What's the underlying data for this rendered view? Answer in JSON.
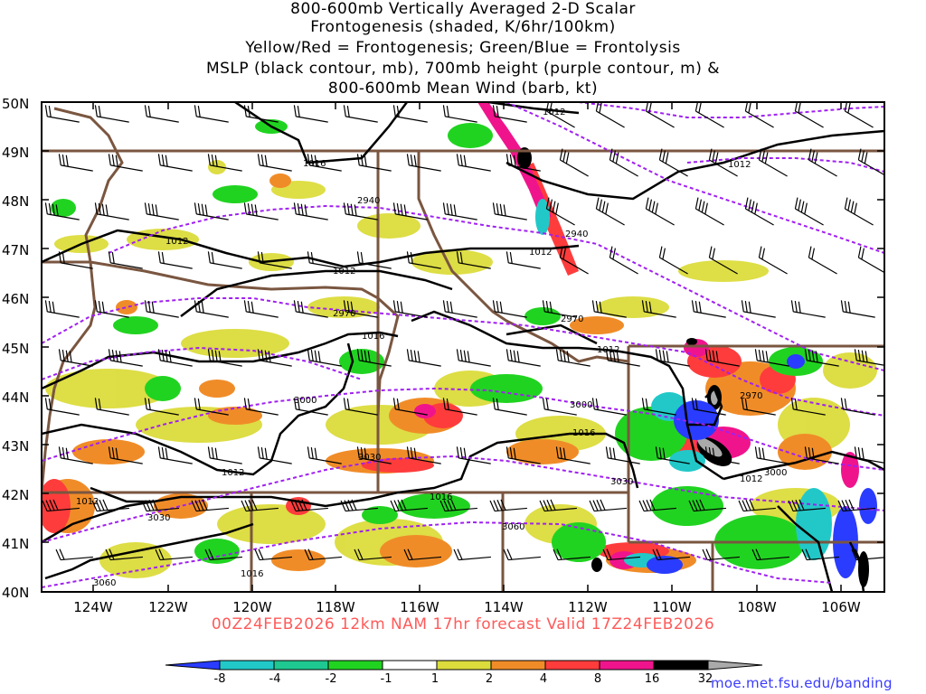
{
  "title": {
    "line1": "800-600mb Vertically Averaged 2-D Scalar",
    "line2": "Frontogenesis (shaded, K/6hr/100km)",
    "line3": "Yellow/Red = Frontogenesis;  Green/Blue = Frontolysis",
    "line4": "MSLP (black contour, mb), 700mb height (purple contour, m) &",
    "line5": "800-600mb Mean Wind (barb, kt)"
  },
  "valid": "00Z24FEB2026 12km NAM 17hr forecast Valid 17Z24FEB2026",
  "credit": "moe.met.fsu.edu/banding",
  "lat_labels": [
    "50N",
    "49N",
    "48N",
    "47N",
    "46N",
    "45N",
    "44N",
    "43N",
    "42N",
    "41N",
    "40N"
  ],
  "lon_labels": [
    "124W",
    "122W",
    "120W",
    "118W",
    "116W",
    "114W",
    "112W",
    "110W",
    "108W",
    "106W"
  ],
  "mslp_labels": [
    "1012",
    "1016",
    "1012",
    "1012",
    "1012",
    "1012",
    "1016",
    "1012",
    "1016",
    "1012",
    "1012",
    "1016",
    "1012",
    "1016"
  ],
  "height_labels": [
    "2940",
    "2940",
    "2970",
    "2970",
    "3000",
    "3000",
    "2970",
    "3030",
    "3030",
    "3000",
    "3030",
    "3060",
    "3060"
  ],
  "colorbar": {
    "labels": [
      "-8",
      "-4",
      "-2",
      "-1",
      "1",
      "2",
      "4",
      "8",
      "16",
      "32"
    ],
    "colors": [
      "#2a3cff",
      "#22c8c8",
      "#1ec890",
      "#21d321",
      "#ffffff",
      "#dcdc3c",
      "#f08c28",
      "#ff3c3c",
      "#f0148c",
      "#000000",
      "#aaaaaa"
    ]
  },
  "colors": {
    "mslp": "#000000",
    "height": "#a020f0",
    "borders": "#7a5640",
    "barbs": "#000000"
  }
}
